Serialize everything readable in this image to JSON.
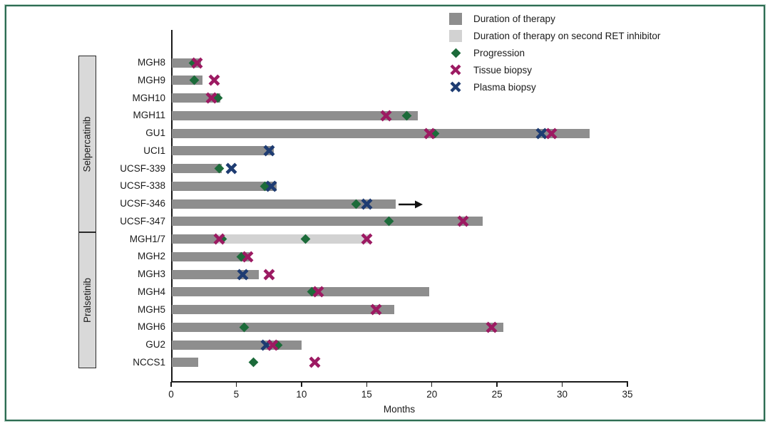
{
  "figure": {
    "border_color": "#2d6b52",
    "background": "#ffffff"
  },
  "legend": {
    "items": [
      {
        "key": "therapy",
        "label": "Duration of therapy",
        "shape": "square",
        "color": "#8e8e8e"
      },
      {
        "key": "second_therapy",
        "label": "Duration of therapy on second RET inhibitor",
        "shape": "square",
        "color": "#d2d2d2"
      },
      {
        "key": "progression",
        "label": "Progression",
        "shape": "diamond",
        "color": "#1c6b3a"
      },
      {
        "key": "tissue",
        "label": "Tissue biopsy",
        "shape": "x",
        "color": "#9c1a62"
      },
      {
        "key": "plasma",
        "label": "Plasma biopsy",
        "shape": "x",
        "color": "#1e3c72"
      }
    ]
  },
  "chart_data": {
    "type": "bar",
    "orientation": "horizontal",
    "title": "",
    "xlabel": "Months",
    "xlim": [
      0,
      35
    ],
    "xticks": [
      0,
      5,
      10,
      15,
      20,
      25,
      30,
      35
    ],
    "bar_colors": {
      "therapy": "#8e8e8e",
      "second_therapy": "#d2d2d2"
    },
    "marker_styles": {
      "progression": {
        "shape": "diamond",
        "color": "#1c6b3a"
      },
      "tissue": {
        "shape": "x",
        "color": "#9c1a62"
      },
      "plasma": {
        "shape": "x",
        "color": "#1e3c72"
      }
    },
    "groups": [
      {
        "label": "Selpercatinib",
        "rows": [
          "MGH8",
          "MGH9",
          "MGH10",
          "MGH11",
          "GU1",
          "UCI1",
          "UCSF-339",
          "UCSF-338",
          "UCSF-346",
          "UCSF-347"
        ]
      },
      {
        "label": "Pralsetinib",
        "rows": [
          "MGH1/7",
          "MGH2",
          "MGH3",
          "MGH4",
          "MGH5",
          "MGH6",
          "GU2",
          "NCCS1"
        ]
      }
    ],
    "rows": [
      {
        "patient": "MGH8",
        "group": "Selpercatinib",
        "therapy_months": 2.3,
        "markers": [
          {
            "type": "progression",
            "month": 1.7
          },
          {
            "type": "tissue",
            "month": 2.0
          }
        ]
      },
      {
        "patient": "MGH9",
        "group": "Selpercatinib",
        "therapy_months": 2.4,
        "markers": [
          {
            "type": "progression",
            "month": 1.8
          },
          {
            "type": "tissue",
            "month": 3.3
          }
        ]
      },
      {
        "patient": "MGH10",
        "group": "Selpercatinib",
        "therapy_months": 3.8,
        "markers": [
          {
            "type": "progression",
            "month": 3.6
          },
          {
            "type": "tissue",
            "month": 3.1
          }
        ]
      },
      {
        "patient": "MGH11",
        "group": "Selpercatinib",
        "therapy_months": 18.9,
        "markers": [
          {
            "type": "tissue",
            "month": 16.5
          },
          {
            "type": "progression",
            "month": 18.1
          }
        ]
      },
      {
        "patient": "GU1",
        "group": "Selpercatinib",
        "therapy_months": 32.1,
        "markers": [
          {
            "type": "progression",
            "month": 20.2
          },
          {
            "type": "tissue",
            "month": 19.8
          },
          {
            "type": "plasma",
            "month": 28.4
          },
          {
            "type": "tissue",
            "month": 29.2
          }
        ]
      },
      {
        "patient": "UCI1",
        "group": "Selpercatinib",
        "therapy_months": 7.9,
        "markers": [
          {
            "type": "plasma",
            "month": 7.5
          }
        ]
      },
      {
        "patient": "UCSF-339",
        "group": "Selpercatinib",
        "therapy_months": 3.9,
        "markers": [
          {
            "type": "progression",
            "month": 3.7
          },
          {
            "type": "plasma",
            "month": 4.6
          }
        ]
      },
      {
        "patient": "UCSF-338",
        "group": "Selpercatinib",
        "therapy_months": 8.1,
        "markers": [
          {
            "type": "progression",
            "month": 7.2
          },
          {
            "type": "plasma",
            "month": 7.7
          }
        ]
      },
      {
        "patient": "UCSF-346",
        "group": "Selpercatinib",
        "therapy_months": 17.2,
        "ongoing": true,
        "markers": [
          {
            "type": "progression",
            "month": 14.2
          },
          {
            "type": "plasma",
            "month": 15.0
          }
        ]
      },
      {
        "patient": "UCSF-347",
        "group": "Selpercatinib",
        "therapy_months": 23.9,
        "markers": [
          {
            "type": "progression",
            "month": 16.7
          },
          {
            "type": "tissue",
            "month": 22.4
          }
        ]
      },
      {
        "patient": "MGH1/7",
        "group": "Pralsetinib",
        "therapy_months": 3.5,
        "second_therapy_end_months": 15.2,
        "markers": [
          {
            "type": "progression",
            "month": 3.9
          },
          {
            "type": "tissue",
            "month": 3.7
          },
          {
            "type": "progression",
            "month": 10.3
          },
          {
            "type": "tissue",
            "month": 15.0
          }
        ]
      },
      {
        "patient": "MGH2",
        "group": "Pralsetinib",
        "therapy_months": 6.0,
        "markers": [
          {
            "type": "progression",
            "month": 5.4
          },
          {
            "type": "tissue",
            "month": 5.9
          }
        ]
      },
      {
        "patient": "MGH3",
        "group": "Pralsetinib",
        "therapy_months": 6.7,
        "markers": [
          {
            "type": "plasma",
            "month": 5.5
          },
          {
            "type": "tissue",
            "month": 7.5
          }
        ]
      },
      {
        "patient": "MGH4",
        "group": "Pralsetinib",
        "therapy_months": 19.8,
        "markers": [
          {
            "type": "progression",
            "month": 10.8
          },
          {
            "type": "tissue",
            "month": 11.3
          }
        ]
      },
      {
        "patient": "MGH5",
        "group": "Pralsetinib",
        "therapy_months": 17.1,
        "markers": [
          {
            "type": "tissue",
            "month": 15.7
          }
        ]
      },
      {
        "patient": "MGH6",
        "group": "Pralsetinib",
        "therapy_months": 25.5,
        "markers": [
          {
            "type": "progression",
            "month": 5.6
          },
          {
            "type": "tissue",
            "month": 24.6
          }
        ]
      },
      {
        "patient": "GU2",
        "group": "Pralsetinib",
        "therapy_months": 10.0,
        "markers": [
          {
            "type": "plasma",
            "month": 7.3
          },
          {
            "type": "progression",
            "month": 8.2
          },
          {
            "type": "tissue",
            "month": 7.8
          }
        ]
      },
      {
        "patient": "NCCS1",
        "group": "Pralsetinib",
        "therapy_months": 2.1,
        "markers": [
          {
            "type": "progression",
            "month": 6.3
          },
          {
            "type": "tissue",
            "month": 11.0
          }
        ]
      }
    ]
  }
}
